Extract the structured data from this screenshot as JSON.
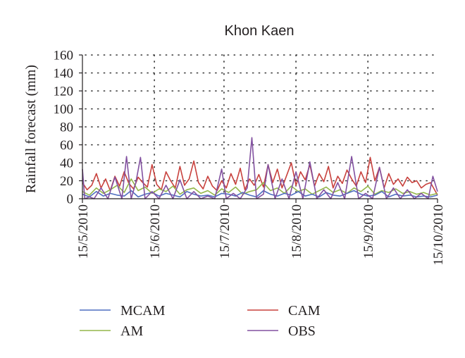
{
  "chart_data": {
    "type": "line",
    "title": "Khon Kaen",
    "xlabel": "",
    "ylabel": "Rainfall forecast (mm)",
    "ylim": [
      0,
      160
    ],
    "yticks": [
      0,
      20,
      40,
      60,
      80,
      100,
      120,
      140,
      160
    ],
    "x_start": "2010-05-15",
    "x_end": "2010-10-15",
    "xtick_dates": [
      "2010-05-15",
      "2010-06-15",
      "2010-07-15",
      "2010-08-15",
      "2010-09-15",
      "2010-10-15"
    ],
    "xtick_labels": [
      "15/5/2010",
      "15/6/2010",
      "15/7/2010",
      "15/8/2010",
      "15/9/2010",
      "15/10/2010"
    ],
    "grid": true,
    "legend_position": "bottom",
    "series": [
      {
        "name": "MCAM",
        "color": "#4f6fc0",
        "x": [
          "2010-05-15",
          "2010-05-18",
          "2010-05-21",
          "2010-05-24",
          "2010-05-27",
          "2010-05-30",
          "2010-06-02",
          "2010-06-05",
          "2010-06-08",
          "2010-06-11",
          "2010-06-14",
          "2010-06-17",
          "2010-06-20",
          "2010-06-23",
          "2010-06-26",
          "2010-06-29",
          "2010-07-02",
          "2010-07-05",
          "2010-07-08",
          "2010-07-11",
          "2010-07-14",
          "2010-07-17",
          "2010-07-20",
          "2010-07-23",
          "2010-07-26",
          "2010-07-29",
          "2010-08-01",
          "2010-08-04",
          "2010-08-07",
          "2010-08-10",
          "2010-08-13",
          "2010-08-16",
          "2010-08-19",
          "2010-08-22",
          "2010-08-25",
          "2010-08-28",
          "2010-08-31",
          "2010-09-03",
          "2010-09-06",
          "2010-09-09",
          "2010-09-12",
          "2010-09-15",
          "2010-09-18",
          "2010-09-21",
          "2010-09-24",
          "2010-09-27",
          "2010-09-30",
          "2010-10-03",
          "2010-10-06",
          "2010-10-09",
          "2010-10-12",
          "2010-10-15"
        ],
        "y": [
          5,
          2,
          8,
          3,
          6,
          4,
          3,
          9,
          2,
          5,
          7,
          3,
          6,
          4,
          2,
          8,
          5,
          3,
          4,
          2,
          6,
          5,
          3,
          7,
          4,
          2,
          9,
          5,
          3,
          6,
          4,
          8,
          3,
          5,
          2,
          7,
          4,
          3,
          6,
          9,
          5,
          3,
          4,
          8,
          2,
          5,
          3,
          4,
          2,
          3,
          2,
          4
        ]
      },
      {
        "name": "CAM",
        "color": "#c8413d",
        "x": [
          "2010-05-15",
          "2010-05-17",
          "2010-05-19",
          "2010-05-21",
          "2010-05-23",
          "2010-05-25",
          "2010-05-27",
          "2010-05-29",
          "2010-05-31",
          "2010-06-02",
          "2010-06-04",
          "2010-06-06",
          "2010-06-08",
          "2010-06-10",
          "2010-06-12",
          "2010-06-14",
          "2010-06-16",
          "2010-06-18",
          "2010-06-20",
          "2010-06-22",
          "2010-06-24",
          "2010-06-26",
          "2010-06-28",
          "2010-06-30",
          "2010-07-02",
          "2010-07-04",
          "2010-07-06",
          "2010-07-08",
          "2010-07-10",
          "2010-07-12",
          "2010-07-14",
          "2010-07-16",
          "2010-07-18",
          "2010-07-20",
          "2010-07-22",
          "2010-07-24",
          "2010-07-26",
          "2010-07-28",
          "2010-07-30",
          "2010-08-01",
          "2010-08-03",
          "2010-08-05",
          "2010-08-07",
          "2010-08-09",
          "2010-08-11",
          "2010-08-13",
          "2010-08-15",
          "2010-08-17",
          "2010-08-19",
          "2010-08-21",
          "2010-08-23",
          "2010-08-25",
          "2010-08-27",
          "2010-08-29",
          "2010-08-31",
          "2010-09-02",
          "2010-09-04",
          "2010-09-06",
          "2010-09-08",
          "2010-09-10",
          "2010-09-12",
          "2010-09-14",
          "2010-09-16",
          "2010-09-18",
          "2010-09-20",
          "2010-09-22",
          "2010-09-24",
          "2010-09-26",
          "2010-09-28",
          "2010-09-30",
          "2010-10-02",
          "2010-10-04",
          "2010-10-06",
          "2010-10-08",
          "2010-10-10",
          "2010-10-12",
          "2010-10-15"
        ],
        "y": [
          18,
          10,
          15,
          28,
          12,
          22,
          9,
          25,
          14,
          30,
          17,
          11,
          24,
          18,
          13,
          38,
          16,
          10,
          30,
          20,
          12,
          36,
          15,
          22,
          42,
          18,
          11,
          25,
          14,
          9,
          20,
          12,
          28,
          16,
          34,
          10,
          22,
          15,
          27,
          13,
          38,
          18,
          33,
          12,
          26,
          40,
          15,
          30,
          21,
          38,
          14,
          28,
          19,
          36,
          12,
          25,
          17,
          32,
          22,
          14,
          30,
          18,
          46,
          20,
          35,
          12,
          28,
          16,
          22,
          14,
          24,
          18,
          20,
          12,
          16,
          18,
          4
        ]
      },
      {
        "name": "AM",
        "color": "#93b74a",
        "x": [
          "2010-05-15",
          "2010-05-18",
          "2010-05-21",
          "2010-05-24",
          "2010-05-27",
          "2010-05-30",
          "2010-06-02",
          "2010-06-05",
          "2010-06-08",
          "2010-06-11",
          "2010-06-14",
          "2010-06-17",
          "2010-06-20",
          "2010-06-23",
          "2010-06-26",
          "2010-06-29",
          "2010-07-02",
          "2010-07-05",
          "2010-07-08",
          "2010-07-11",
          "2010-07-14",
          "2010-07-17",
          "2010-07-20",
          "2010-07-23",
          "2010-07-26",
          "2010-07-29",
          "2010-08-01",
          "2010-08-04",
          "2010-08-07",
          "2010-08-10",
          "2010-08-13",
          "2010-08-16",
          "2010-08-19",
          "2010-08-22",
          "2010-08-25",
          "2010-08-28",
          "2010-08-31",
          "2010-09-03",
          "2010-09-06",
          "2010-09-09",
          "2010-09-12",
          "2010-09-15",
          "2010-09-18",
          "2010-09-21",
          "2010-09-24",
          "2010-09-27",
          "2010-09-30",
          "2010-10-03",
          "2010-10-06",
          "2010-10-09",
          "2010-10-12",
          "2010-10-15"
        ],
        "y": [
          8,
          4,
          12,
          6,
          10,
          15,
          7,
          22,
          9,
          13,
          6,
          11,
          8,
          14,
          5,
          10,
          12,
          6,
          9,
          4,
          11,
          7,
          13,
          5,
          8,
          10,
          18,
          9,
          12,
          6,
          14,
          8,
          11,
          5,
          9,
          13,
          7,
          10,
          6,
          12,
          8,
          14,
          5,
          9,
          7,
          11,
          6,
          8,
          5,
          7,
          4,
          6
        ]
      },
      {
        "name": "OBS",
        "color": "#8251a0",
        "x": [
          "2010-05-15",
          "2010-05-16",
          "2010-05-18",
          "2010-05-20",
          "2010-05-23",
          "2010-05-26",
          "2010-05-29",
          "2010-06-01",
          "2010-06-03",
          "2010-06-05",
          "2010-06-07",
          "2010-06-09",
          "2010-06-11",
          "2010-06-14",
          "2010-06-17",
          "2010-06-20",
          "2010-06-23",
          "2010-06-26",
          "2010-06-29",
          "2010-07-02",
          "2010-07-05",
          "2010-07-08",
          "2010-07-11",
          "2010-07-14",
          "2010-07-16",
          "2010-07-19",
          "2010-07-22",
          "2010-07-25",
          "2010-07-27",
          "2010-07-29",
          "2010-08-01",
          "2010-08-03",
          "2010-08-06",
          "2010-08-09",
          "2010-08-12",
          "2010-08-15",
          "2010-08-18",
          "2010-08-21",
          "2010-08-24",
          "2010-08-27",
          "2010-08-30",
          "2010-09-02",
          "2010-09-05",
          "2010-09-08",
          "2010-09-11",
          "2010-09-14",
          "2010-09-17",
          "2010-09-20",
          "2010-09-23",
          "2010-09-26",
          "2010-09-29",
          "2010-10-02",
          "2010-10-05",
          "2010-10-08",
          "2010-10-11",
          "2010-10-13",
          "2010-10-15"
        ],
        "y": [
          33,
          0,
          2,
          0,
          12,
          0,
          24,
          0,
          47,
          0,
          18,
          46,
          0,
          8,
          0,
          15,
          0,
          21,
          0,
          8,
          0,
          3,
          0,
          33,
          0,
          6,
          0,
          12,
          68,
          0,
          5,
          38,
          0,
          22,
          0,
          30,
          0,
          41,
          0,
          10,
          0,
          18,
          0,
          47,
          0,
          6,
          0,
          35,
          0,
          12,
          0,
          10,
          0,
          6,
          0,
          25,
          8
        ]
      }
    ]
  }
}
